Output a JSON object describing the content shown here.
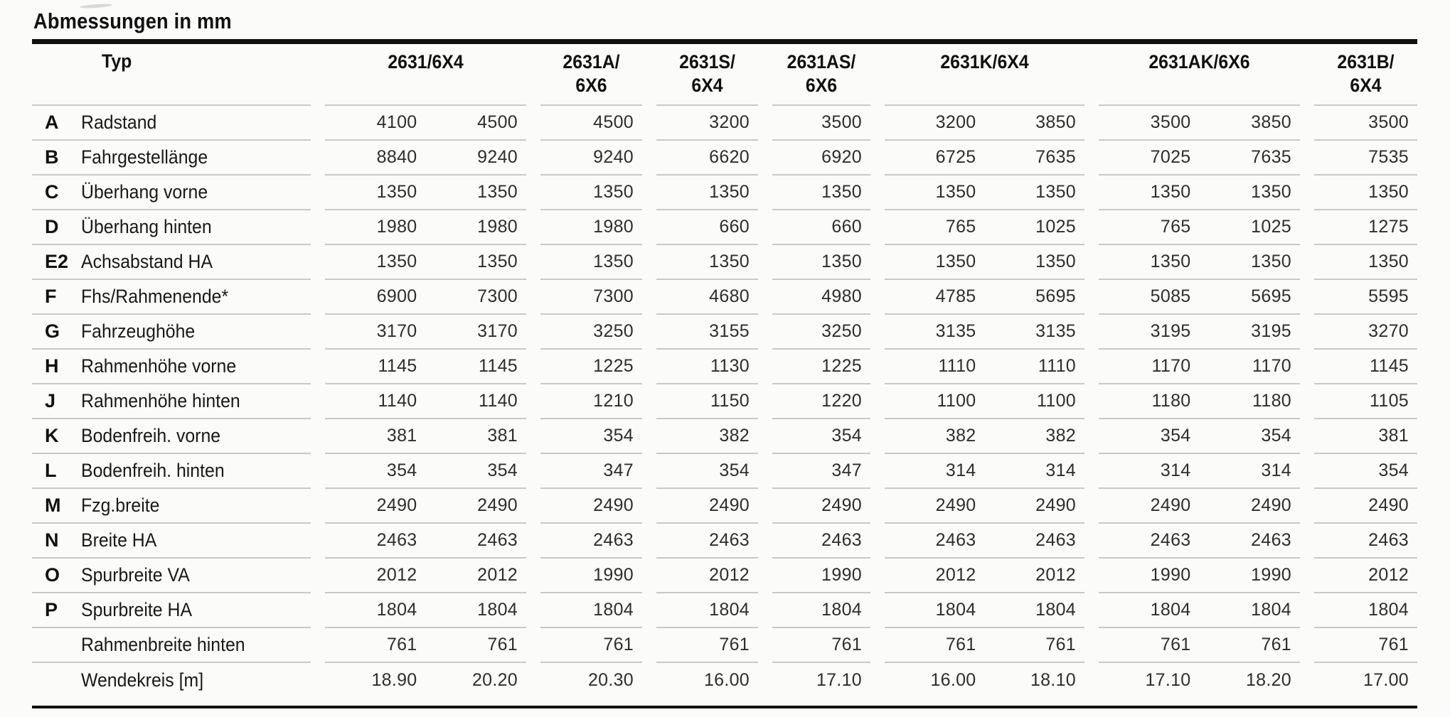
{
  "title": "Abmessungen in mm",
  "table": {
    "typ_label": "Typ",
    "columns": [
      {
        "label": "2631/6X4"
      },
      {
        "label": "2631A/\n6X6"
      },
      {
        "label": "2631S/\n6X4"
      },
      {
        "label": "2631AS/\n6X6"
      },
      {
        "label": "2631K/6X4"
      },
      {
        "label": "2631AK/6X6"
      },
      {
        "label": "2631B/\n6X4"
      }
    ],
    "rows": [
      {
        "code": "A",
        "label": "Radstand",
        "values": [
          "4100",
          "4500",
          "4500",
          "3200",
          "3500",
          "3200",
          "3850",
          "3500",
          "3850",
          "3500"
        ]
      },
      {
        "code": "B",
        "label": "Fahrgestellänge",
        "values": [
          "8840",
          "9240",
          "9240",
          "6620",
          "6920",
          "6725",
          "7635",
          "7025",
          "7635",
          "7535"
        ]
      },
      {
        "code": "C",
        "label": "Überhang vorne",
        "values": [
          "1350",
          "1350",
          "1350",
          "1350",
          "1350",
          "1350",
          "1350",
          "1350",
          "1350",
          "1350"
        ]
      },
      {
        "code": "D",
        "label": "Überhang hinten",
        "values": [
          "1980",
          "1980",
          "1980",
          "660",
          "660",
          "765",
          "1025",
          "765",
          "1025",
          "1275"
        ]
      },
      {
        "code": "E2",
        "label": "Achsabstand HA",
        "values": [
          "1350",
          "1350",
          "1350",
          "1350",
          "1350",
          "1350",
          "1350",
          "1350",
          "1350",
          "1350"
        ]
      },
      {
        "code": "F",
        "label": "Fhs/Rahmenende*",
        "values": [
          "6900",
          "7300",
          "7300",
          "4680",
          "4980",
          "4785",
          "5695",
          "5085",
          "5695",
          "5595"
        ]
      },
      {
        "code": "G",
        "label": "Fahrzeughöhe",
        "values": [
          "3170",
          "3170",
          "3250",
          "3155",
          "3250",
          "3135",
          "3135",
          "3195",
          "3195",
          "3270"
        ]
      },
      {
        "code": "H",
        "label": "Rahmenhöhe vorne",
        "values": [
          "1145",
          "1145",
          "1225",
          "1130",
          "1225",
          "1110",
          "1110",
          "1170",
          "1170",
          "1145"
        ]
      },
      {
        "code": "J",
        "label": "Rahmenhöhe hinten",
        "values": [
          "1140",
          "1140",
          "1210",
          "1150",
          "1220",
          "1100",
          "1100",
          "1180",
          "1180",
          "1105"
        ]
      },
      {
        "code": "K",
        "label": "Bodenfreih. vorne",
        "values": [
          "381",
          "381",
          "354",
          "382",
          "354",
          "382",
          "382",
          "354",
          "354",
          "381"
        ]
      },
      {
        "code": "L",
        "label": "Bodenfreih. hinten",
        "values": [
          "354",
          "354",
          "347",
          "354",
          "347",
          "314",
          "314",
          "314",
          "314",
          "354"
        ]
      },
      {
        "code": "M",
        "label": "Fzg.breite",
        "values": [
          "2490",
          "2490",
          "2490",
          "2490",
          "2490",
          "2490",
          "2490",
          "2490",
          "2490",
          "2490"
        ]
      },
      {
        "code": "N",
        "label": "Breite HA",
        "values": [
          "2463",
          "2463",
          "2463",
          "2463",
          "2463",
          "2463",
          "2463",
          "2463",
          "2463",
          "2463"
        ]
      },
      {
        "code": "O",
        "label": "Spurbreite VA",
        "values": [
          "2012",
          "2012",
          "1990",
          "2012",
          "1990",
          "2012",
          "2012",
          "1990",
          "1990",
          "2012"
        ]
      },
      {
        "code": "P",
        "label": "Spurbreite HA",
        "values": [
          "1804",
          "1804",
          "1804",
          "1804",
          "1804",
          "1804",
          "1804",
          "1804",
          "1804",
          "1804"
        ]
      },
      {
        "code": "",
        "label": "Rahmenbreite hinten",
        "values": [
          "761",
          "761",
          "761",
          "761",
          "761",
          "761",
          "761",
          "761",
          "761",
          "761"
        ]
      },
      {
        "code": "",
        "label": "Wendekreis [m]",
        "values": [
          "18.90",
          "20.20",
          "20.30",
          "16.00",
          "17.10",
          "16.00",
          "18.10",
          "17.10",
          "18.20",
          "17.00"
        ]
      }
    ]
  }
}
